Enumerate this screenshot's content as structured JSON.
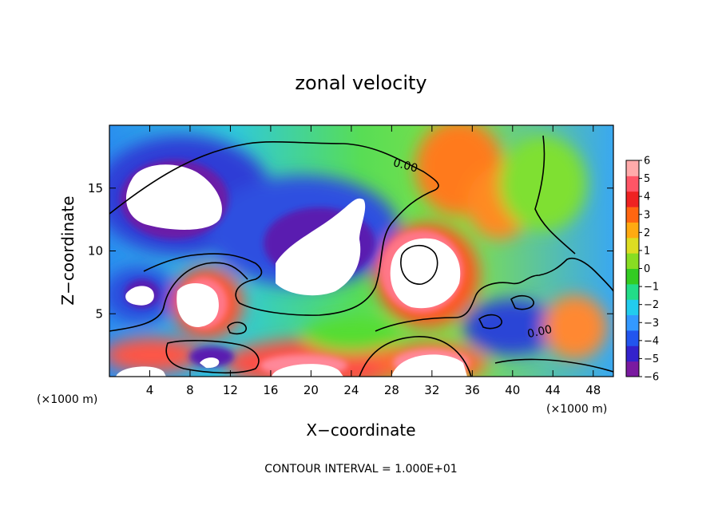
{
  "chart_data": {
    "type": "heatmap",
    "title": "zonal velocity",
    "xlabel": "X−coordinate",
    "ylabel": "Z−coordinate",
    "x_unit_note_left": "(×1000 m)",
    "x_unit_note_right": "(×1000 m)",
    "x_ticks": [
      4,
      8,
      12,
      16,
      20,
      24,
      28,
      32,
      36,
      40,
      44,
      48
    ],
    "x_tick_labels": [
      "4",
      "8",
      "12",
      "16",
      "20",
      "24",
      "28",
      "32",
      "36",
      "40",
      "44",
      "48"
    ],
    "y_ticks": [
      5,
      10,
      15
    ],
    "y_tick_labels": [
      "5",
      "10",
      "15"
    ],
    "xlim": [
      0,
      50
    ],
    "ylim": [
      0,
      20
    ],
    "colorbar": {
      "ticks": [
        6,
        5,
        4,
        3,
        2,
        1,
        0,
        -1,
        -2,
        -3,
        -4,
        -5,
        -6
      ],
      "tick_labels": [
        "6",
        "5",
        "4",
        "3",
        "2",
        "1",
        "0",
        "−1",
        "−2",
        "−3",
        "−4",
        "−5",
        "−6"
      ],
      "range": [
        -6,
        6
      ],
      "colors": [
        "#7a1aa0",
        "#3322cc",
        "#2255ee",
        "#3399ff",
        "#22ccee",
        "#22dd88",
        "#33cc22",
        "#88dd22",
        "#dddd22",
        "#ffaa11",
        "#ff6611",
        "#ee2222",
        "#ff5566",
        "#ffaaaa"
      ]
    },
    "contour_labels": [
      "0.00",
      "0.00"
    ],
    "footer": "CONTOUR INTERVAL = 1.000E+01"
  }
}
